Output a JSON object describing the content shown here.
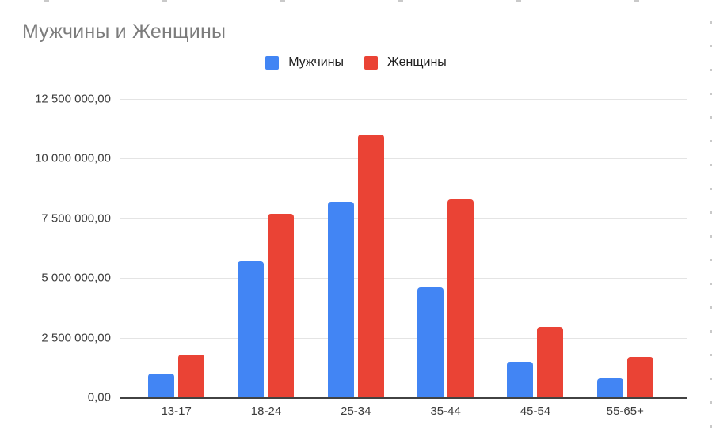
{
  "chart_data": {
    "type": "bar",
    "title": "Мужчины и Женщины",
    "categories": [
      "13-17",
      "18-24",
      "25-34",
      "35-44",
      "45-54",
      "55-65+"
    ],
    "series": [
      {
        "name": "Мужчины",
        "color": "#4285F4",
        "values": [
          1000000,
          5700000,
          8200000,
          4600000,
          1500000,
          800000
        ]
      },
      {
        "name": "Женщины",
        "color": "#EA4335",
        "values": [
          1800000,
          7700000,
          11000000,
          8300000,
          2950000,
          1700000
        ]
      }
    ],
    "xlabel": "",
    "ylabel": "",
    "ylim": [
      0,
      12500000
    ],
    "ytick_interval": 2500000,
    "ytick_labels": [
      "0,00",
      "2 500 000,00",
      "5 000 000,00",
      "7 500 000,00",
      "10 000 000,00",
      "12 500 000,00"
    ],
    "grid": true,
    "legend_position": "top"
  }
}
